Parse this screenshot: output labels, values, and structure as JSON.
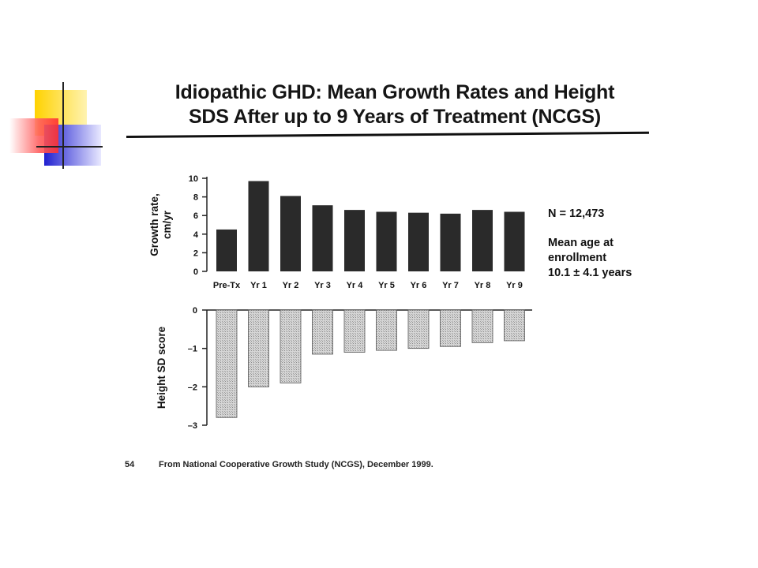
{
  "slide": {
    "title_line1": "Idiopathic GHD: Mean Growth Rates and Height",
    "title_line2": "SDS After up to 9 Years of Treatment (NCGS)",
    "info": {
      "n_label": "N  = 12,473",
      "mean_age_label": "Mean age at",
      "enrollment_label": "enrollment",
      "age_value": "10.1 ± 4.1 years"
    },
    "footer": {
      "page_number": "54",
      "source": "From National Cooperative Growth Study (NCGS), December 1999."
    }
  },
  "chart_data": [
    {
      "type": "bar",
      "categories": [
        "Pre-Tx",
        "Yr 1",
        "Yr 2",
        "Yr 3",
        "Yr 4",
        "Yr 5",
        "Yr 6",
        "Yr 7",
        "Yr 8",
        "Yr 9"
      ],
      "values": [
        4.5,
        9.7,
        8.1,
        7.1,
        6.6,
        6.4,
        6.3,
        6.2,
        6.6,
        6.4
      ],
      "ylabel": "Growth rate, cm/yr",
      "ylabel_lines": [
        "Growth rate,",
        "cm/yr"
      ],
      "ylim": [
        0,
        10
      ],
      "yticks": [
        0,
        2,
        4,
        6,
        8,
        10
      ],
      "color": "#2a2a2a"
    },
    {
      "type": "bar",
      "categories": [
        "Pre-Tx",
        "Yr 1",
        "Yr 2",
        "Yr 3",
        "Yr 4",
        "Yr 5",
        "Yr 6",
        "Yr 7",
        "Yr 8",
        "Yr 9"
      ],
      "values": [
        -2.8,
        -2.0,
        -1.9,
        -1.15,
        -1.1,
        -1.05,
        -1.0,
        -0.95,
        -0.85,
        -0.8
      ],
      "ylabel": "Height SD score",
      "ylim": [
        -3,
        0
      ],
      "yticks": [
        0,
        -1,
        -2,
        -3
      ],
      "ytick_labels": [
        "0",
        "–1",
        "–2",
        "–3"
      ],
      "color": "#d9d9d9"
    }
  ]
}
